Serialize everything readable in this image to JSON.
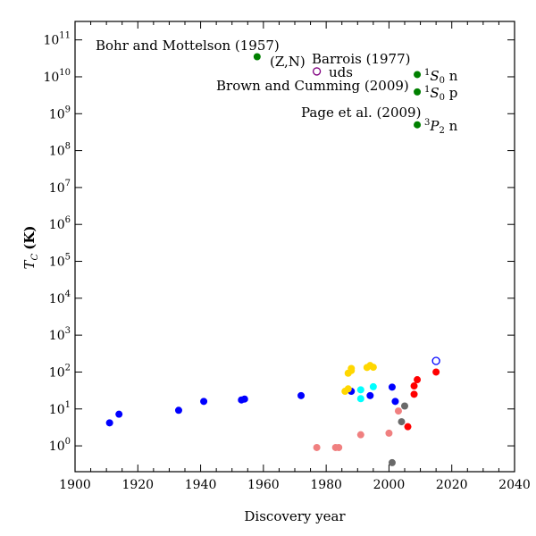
{
  "chart_data": {
    "type": "scatter",
    "xlabel": "Discovery year",
    "ylabel_main": "T",
    "ylabel_sub": "C",
    "ylabel_unit": "(K)",
    "xlim": [
      1900,
      2040
    ],
    "ylog": true,
    "ylim_exp": [
      -0.7,
      11.5
    ],
    "x_ticks": [
      1900,
      1920,
      1940,
      1960,
      1980,
      2000,
      2020,
      2040
    ],
    "y_tick_exps": [
      0,
      1,
      2,
      3,
      4,
      5,
      6,
      7,
      8,
      9,
      10,
      11
    ],
    "grid": false,
    "colors": {
      "blue": "#0000ff",
      "gold": "#ffd700",
      "cyan": "#00ffff",
      "salmon": "#f08080",
      "gray": "#696969",
      "red": "#ff0000",
      "green": "#008000",
      "purple": "#800080"
    },
    "series": [
      {
        "color": "blue",
        "filled": true,
        "points": [
          {
            "x": 1911,
            "y": 4.2
          },
          {
            "x": 1914,
            "y": 7.2
          },
          {
            "x": 1933,
            "y": 9.2
          },
          {
            "x": 1941,
            "y": 16
          },
          {
            "x": 1953,
            "y": 17.5
          },
          {
            "x": 1954,
            "y": 18.5
          },
          {
            "x": 1972,
            "y": 23
          },
          {
            "x": 1988,
            "y": 30
          },
          {
            "x": 1994,
            "y": 23
          },
          {
            "x": 2001,
            "y": 39
          },
          {
            "x": 2002,
            "y": 16
          }
        ]
      },
      {
        "color": "gold",
        "filled": true,
        "points": [
          {
            "x": 1986,
            "y": 30
          },
          {
            "x": 1987,
            "y": 35
          },
          {
            "x": 1987,
            "y": 93
          },
          {
            "x": 1988,
            "y": 110
          },
          {
            "x": 1988,
            "y": 125
          },
          {
            "x": 1993,
            "y": 133
          },
          {
            "x": 1994,
            "y": 150
          },
          {
            "x": 1995,
            "y": 135
          }
        ]
      },
      {
        "color": "cyan",
        "filled": true,
        "points": [
          {
            "x": 1991,
            "y": 19
          },
          {
            "x": 1991,
            "y": 33
          },
          {
            "x": 1995,
            "y": 40
          }
        ]
      },
      {
        "color": "salmon",
        "filled": true,
        "points": [
          {
            "x": 1977,
            "y": 0.9
          },
          {
            "x": 1983,
            "y": 0.9
          },
          {
            "x": 1984,
            "y": 0.9
          },
          {
            "x": 1991,
            "y": 2
          },
          {
            "x": 2000,
            "y": 2.2
          },
          {
            "x": 2003,
            "y": 8.8
          }
        ]
      },
      {
        "color": "gray",
        "filled": true,
        "points": [
          {
            "x": 2001,
            "y": 0.35
          },
          {
            "x": 2004,
            "y": 4.5
          },
          {
            "x": 2005,
            "y": 12
          }
        ]
      },
      {
        "color": "red",
        "filled": true,
        "points": [
          {
            "x": 2006,
            "y": 3.3
          },
          {
            "x": 2008,
            "y": 25
          },
          {
            "x": 2008,
            "y": 42
          },
          {
            "x": 2009,
            "y": 62
          },
          {
            "x": 2015,
            "y": 100
          }
        ]
      },
      {
        "color": "blue",
        "filled": false,
        "points": [
          {
            "x": 2015,
            "y": 200
          }
        ]
      },
      {
        "color": "green",
        "filled": true,
        "points": [
          {
            "x": 1958,
            "y": 35000000000.0
          },
          {
            "x": 2009,
            "y": 11500000000.0
          },
          {
            "x": 2009,
            "y": 3900000000.0
          },
          {
            "x": 2009,
            "y": 500000000.0
          }
        ]
      },
      {
        "color": "purple",
        "filled": false,
        "points": [
          {
            "x": 1977,
            "y": 14000000000.0
          }
        ]
      }
    ],
    "annotations": {
      "bohr": "Bohr and Mottelson (1957)",
      "zn": "(Z,N)",
      "barrois": "Barrois (1977)",
      "uds": "uds",
      "brown": "Brown and Cumming (2009)",
      "page": "Page et al. (2009)",
      "s0n_sup": "1",
      "s0n_main": "S",
      "s0n_sub": "0",
      "s0n_suffix": " n",
      "s0p_sup": "1",
      "s0p_main": "S",
      "s0p_sub": "0",
      "s0p_suffix": " p",
      "p2n_sup": "3",
      "p2n_main": "P",
      "p2n_sub": "2",
      "p2n_suffix": " n"
    }
  }
}
